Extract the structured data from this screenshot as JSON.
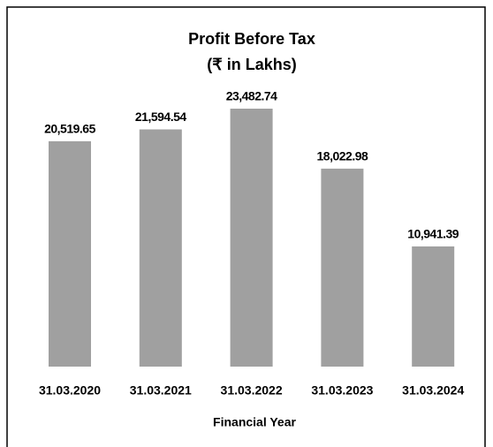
{
  "chart_data": {
    "type": "bar",
    "title": "Profit Before Tax",
    "subtitle": "(₹ in Lakhs)",
    "x_label": "Financial Year",
    "categories": [
      "31.03.2020",
      "31.03.2021",
      "31.03.2022",
      "31.03.2023",
      "31.03.2024"
    ],
    "values": [
      20519.65,
      21594.54,
      23482.74,
      18022.98,
      10941.39
    ],
    "value_labels": [
      "20,519.65",
      "21,594.54",
      "23,482.74",
      "18,022.98",
      "10,941.39"
    ],
    "color": "#a0a0a0"
  }
}
